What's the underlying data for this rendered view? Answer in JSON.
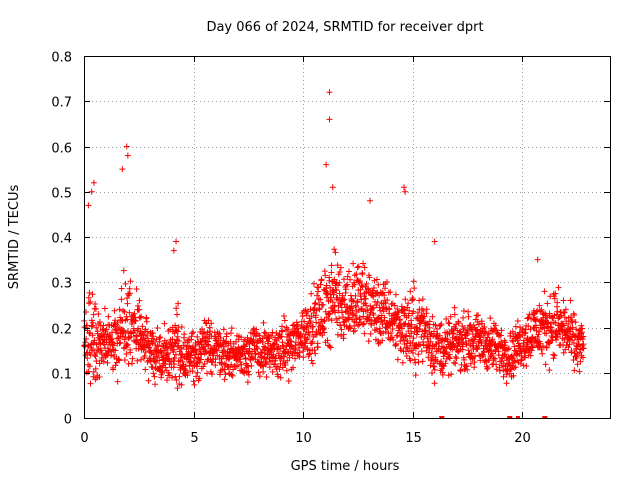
{
  "chart_data": {
    "type": "scatter",
    "title": "Day 066 of 2024, SRMTID for receiver dprt",
    "xlabel": "GPS time / hours",
    "ylabel": "SRMTID / TECUs",
    "xlim": [
      0,
      24
    ],
    "ylim": [
      0,
      0.8
    ],
    "xticks": [
      0,
      5,
      10,
      15,
      20
    ],
    "yticks": [
      0,
      0.1,
      0.2,
      0.3,
      0.4,
      0.5,
      0.6,
      0.7,
      0.8
    ],
    "xtick_labels": [
      "0",
      "5",
      "10",
      "15",
      "20"
    ],
    "ytick_labels": [
      "0",
      "0.1",
      "0.2",
      "0.3",
      "0.4",
      "0.5",
      "0.6",
      "0.7",
      "0.8"
    ],
    "grid": true,
    "marker": "plus",
    "color": "#ff0000",
    "series_envelope": {
      "hours": [
        0,
        0.3,
        0.6,
        1,
        1.5,
        2,
        2.5,
        3,
        3.5,
        4,
        4.2,
        4.5,
        5,
        5.5,
        6,
        6.5,
        7,
        7.5,
        8,
        8.5,
        9,
        9.5,
        10,
        10.5,
        11,
        11.2,
        11.5,
        12,
        12.5,
        13,
        13.5,
        14,
        14.5,
        15,
        15.5,
        16,
        16.5,
        17,
        17.5,
        18,
        18.5,
        19,
        19.5,
        20,
        20.5,
        21,
        21.5,
        22,
        22.5,
        22.8
      ],
      "median": [
        0.16,
        0.2,
        0.18,
        0.15,
        0.17,
        0.22,
        0.18,
        0.15,
        0.14,
        0.14,
        0.16,
        0.14,
        0.14,
        0.15,
        0.16,
        0.14,
        0.14,
        0.15,
        0.15,
        0.14,
        0.15,
        0.16,
        0.19,
        0.21,
        0.24,
        0.27,
        0.27,
        0.25,
        0.26,
        0.25,
        0.23,
        0.22,
        0.2,
        0.19,
        0.2,
        0.16,
        0.15,
        0.17,
        0.17,
        0.17,
        0.16,
        0.15,
        0.14,
        0.17,
        0.19,
        0.2,
        0.21,
        0.19,
        0.16,
        0.16
      ],
      "spread": [
        0.06,
        0.15,
        0.1,
        0.08,
        0.09,
        0.14,
        0.1,
        0.08,
        0.07,
        0.07,
        0.14,
        0.07,
        0.06,
        0.07,
        0.07,
        0.06,
        0.06,
        0.07,
        0.07,
        0.06,
        0.07,
        0.07,
        0.08,
        0.09,
        0.1,
        0.14,
        0.11,
        0.1,
        0.1,
        0.1,
        0.09,
        0.09,
        0.08,
        0.12,
        0.08,
        0.09,
        0.07,
        0.07,
        0.07,
        0.07,
        0.07,
        0.07,
        0.06,
        0.07,
        0.08,
        0.09,
        0.09,
        0.08,
        0.07,
        0.07
      ]
    },
    "notable_points": [
      {
        "x": 11.2,
        "y": 0.72
      },
      {
        "x": 11.2,
        "y": 0.66
      },
      {
        "x": 11.05,
        "y": 0.56
      },
      {
        "x": 11.35,
        "y": 0.51
      },
      {
        "x": 1.95,
        "y": 0.6
      },
      {
        "x": 2.0,
        "y": 0.58
      },
      {
        "x": 1.75,
        "y": 0.55
      },
      {
        "x": 0.45,
        "y": 0.52
      },
      {
        "x": 0.35,
        "y": 0.5
      },
      {
        "x": 0.2,
        "y": 0.47
      },
      {
        "x": 14.6,
        "y": 0.51
      },
      {
        "x": 14.65,
        "y": 0.5
      },
      {
        "x": 13.05,
        "y": 0.48
      },
      {
        "x": 4.2,
        "y": 0.39
      },
      {
        "x": 4.1,
        "y": 0.37
      },
      {
        "x": 16.0,
        "y": 0.39
      },
      {
        "x": 20.7,
        "y": 0.35
      }
    ],
    "zero_points": [
      16.3,
      16.35,
      19.4,
      19.45,
      19.8,
      21.0,
      21.05
    ]
  }
}
